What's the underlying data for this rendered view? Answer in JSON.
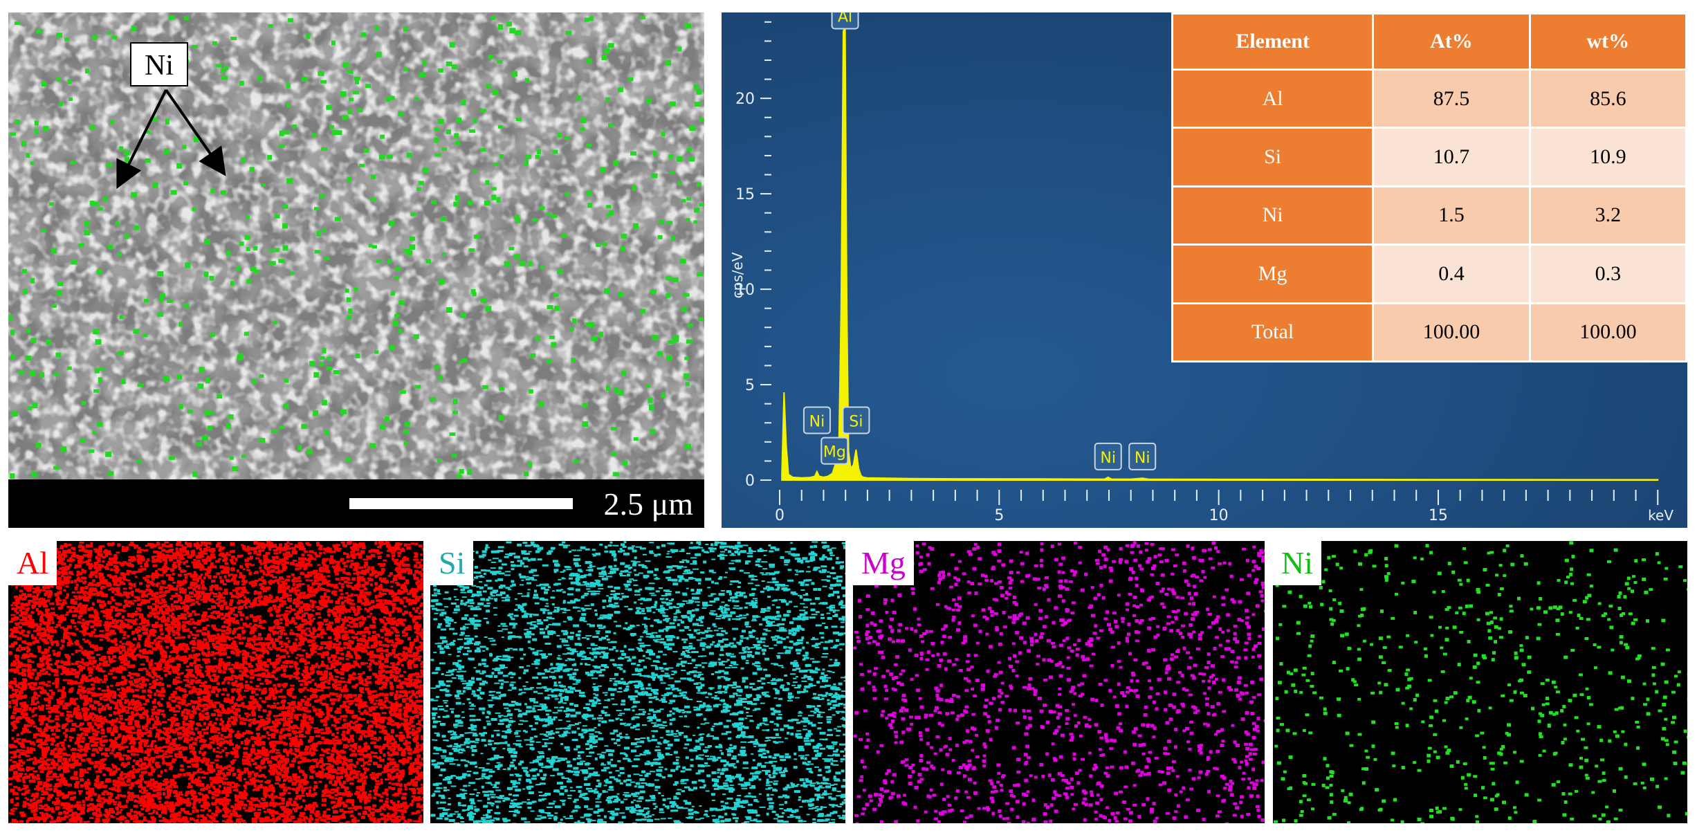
{
  "sem_image": {
    "annotation": "Ni",
    "scale_bar_label": "2.5 μm",
    "colors": {
      "background": "#838383",
      "particles": "#22d822"
    }
  },
  "spectrum": {
    "colors": {
      "background": "#1f4c7e",
      "trace": "#f5f200"
    },
    "chart_data": {
      "type": "line",
      "xlabel": "keV",
      "ylabel": "cps/eV",
      "xlim": [
        0,
        20.5
      ],
      "ylim": [
        0,
        24.5
      ],
      "x_ticks": [
        "0",
        "5",
        "10",
        "15"
      ],
      "y_ticks": [
        "0",
        "5",
        "10",
        "15",
        "20"
      ],
      "peak_labels": [
        "Al",
        "Ni",
        "Mg",
        "Si",
        "Ni",
        "Ni"
      ],
      "series": [
        {
          "x": [
            0.05,
            0.1,
            0.15,
            0.2,
            0.3,
            0.5,
            0.7,
            0.8,
            0.85,
            0.9,
            1.0,
            1.1,
            1.2,
            1.25,
            1.3,
            1.35,
            1.4,
            1.45,
            1.49,
            1.53,
            1.57,
            1.62,
            1.68,
            1.74,
            1.8,
            1.85,
            1.9,
            2.0,
            2.5,
            3.0,
            4.0,
            6.0,
            7.4,
            7.48,
            7.56,
            8.0,
            8.26,
            8.4,
            10.0,
            15.0,
            20.0
          ],
          "y": [
            0.3,
            4.6,
            1.8,
            0.3,
            0.15,
            0.12,
            0.14,
            0.2,
            0.45,
            0.2,
            0.15,
            0.2,
            0.35,
            0.7,
            1.0,
            2.0,
            9.0,
            23.5,
            23.8,
            9.0,
            1.5,
            0.6,
            0.8,
            1.6,
            0.6,
            0.25,
            0.15,
            0.12,
            0.1,
            0.08,
            0.07,
            0.06,
            0.05,
            0.15,
            0.05,
            0.05,
            0.1,
            0.05,
            0.04,
            0.03,
            0.02
          ]
        }
      ]
    }
  },
  "table": {
    "headers": [
      "Element",
      "At%",
      "wt%"
    ],
    "rows": [
      {
        "element": "Al",
        "at": "87.5",
        "wt": "85.6"
      },
      {
        "element": "Si",
        "at": "10.7",
        "wt": "10.9"
      },
      {
        "element": "Ni",
        "at": "1.5",
        "wt": "3.2"
      },
      {
        "element": "Mg",
        "at": "0.4",
        "wt": "0.3"
      },
      {
        "element": "Total",
        "at": "100.00",
        "wt": "100.00"
      }
    ]
  },
  "maps": [
    {
      "label": "Al",
      "color": "#ff0000",
      "label_color": "#ff0000"
    },
    {
      "label": "Si",
      "color": "#22d3d3",
      "label_color": "#22aaaa"
    },
    {
      "label": "Mg",
      "color": "#e000e0",
      "label_color": "#cc00cc"
    },
    {
      "label": "Ni",
      "color": "#22e022",
      "label_color": "#11bb11"
    }
  ]
}
